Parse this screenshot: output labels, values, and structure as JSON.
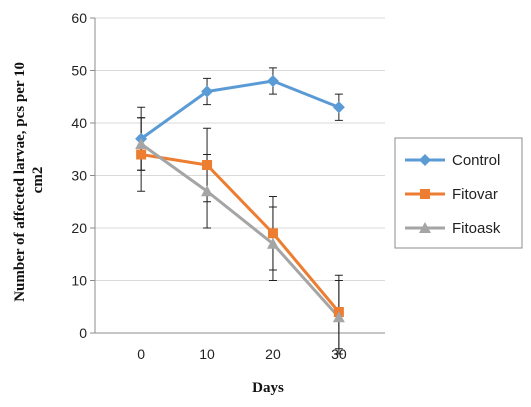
{
  "chart_data": {
    "type": "line",
    "xlabel": "Days",
    "ylabel": "Number of affected larvae, pcs per 10 cm2",
    "x": [
      0,
      10,
      20,
      30
    ],
    "xlim": [
      -7,
      37
    ],
    "ylim": [
      0,
      60
    ],
    "yticks": [
      0,
      10,
      20,
      30,
      40,
      50,
      60
    ],
    "xticks": [
      0,
      10,
      20,
      30
    ],
    "grid": true,
    "legend_position": "right",
    "series": [
      {
        "name": "Control",
        "color": "#5b9bd5",
        "marker": "diamond",
        "values": [
          37,
          46,
          48,
          43
        ],
        "error": [
          6,
          2.5,
          2.5,
          2.5
        ]
      },
      {
        "name": "Fitovar",
        "color": "#ed7d31",
        "marker": "square",
        "values": [
          34,
          32,
          19,
          4
        ],
        "error": [
          7,
          7,
          7,
          7
        ]
      },
      {
        "name": "Fitoask",
        "color": "#a5a5a5",
        "marker": "triangle",
        "values": [
          36,
          27,
          17,
          3
        ],
        "error": [
          5,
          7,
          7,
          7
        ]
      }
    ]
  }
}
